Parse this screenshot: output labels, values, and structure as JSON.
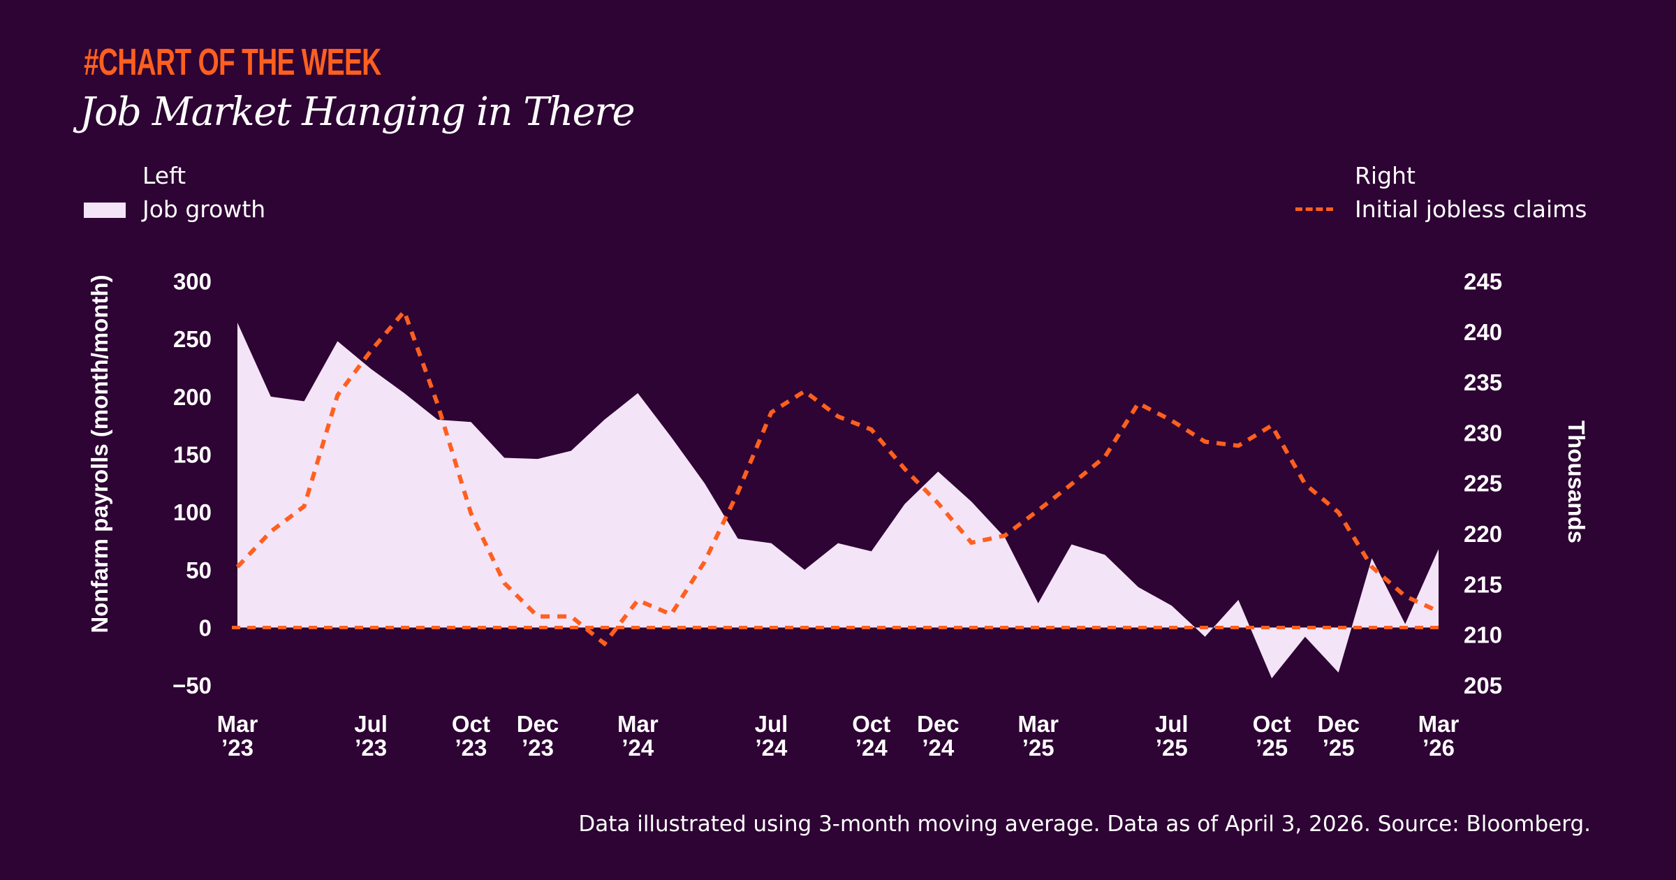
{
  "header": {
    "tag": "#CHART OF THE WEEK",
    "title": "Job Market Hanging in There"
  },
  "legend": {
    "left_heading": "Left",
    "left_item": "Job growth",
    "right_heading": "Right",
    "right_item": "Initial jobless claims"
  },
  "footnote": "Data illustrated using 3-month moving average. Data as of April 3, 2026. Source: Bloomberg.",
  "colors": {
    "background": "#2d0433",
    "area": "#f4e4f7",
    "line": "#ff5f1f",
    "accent": "#ff5f1f"
  },
  "chart_data": {
    "type": "area+line",
    "title": "Job Market Hanging in There",
    "ylabel": "Nonfarm payrolls (month/month)",
    "y2label": "Thousands",
    "ylim": [
      -50,
      300
    ],
    "y2lim": [
      205,
      245
    ],
    "yticks": [
      "300",
      "250",
      "200",
      "150",
      "100",
      "50",
      "0",
      "−50"
    ],
    "y2ticks": [
      "245",
      "240",
      "235",
      "230",
      "225",
      "220",
      "215",
      "210",
      "205"
    ],
    "xticks": [
      {
        "month": "Mar",
        "year": "’23",
        "index": 0
      },
      {
        "month": "Jul",
        "year": "’23",
        "index": 4
      },
      {
        "month": "Oct",
        "year": "’23",
        "index": 7
      },
      {
        "month": "Dec",
        "year": "’23",
        "index": 9
      },
      {
        "month": "Mar",
        "year": "’24",
        "index": 12
      },
      {
        "month": "Jul",
        "year": "’24",
        "index": 16
      },
      {
        "month": "Oct",
        "year": "’24",
        "index": 19
      },
      {
        "month": "Dec",
        "year": "’24",
        "index": 21
      },
      {
        "month": "Mar",
        "year": "’25",
        "index": 24
      },
      {
        "month": "Jul",
        "year": "’25",
        "index": 28
      },
      {
        "month": "Oct",
        "year": "’25",
        "index": 31
      },
      {
        "month": "Dec",
        "year": "’25",
        "index": 33
      },
      {
        "month": "Mar",
        "year": "’26",
        "index": 36
      }
    ],
    "x": [
      "2023-03",
      "2023-04",
      "2023-05",
      "2023-06",
      "2023-07",
      "2023-08",
      "2023-09",
      "2023-10",
      "2023-11",
      "2023-12",
      "2024-01",
      "2024-02",
      "2024-03",
      "2024-04",
      "2024-05",
      "2024-06",
      "2024-07",
      "2024-08",
      "2024-09",
      "2024-10",
      "2024-11",
      "2024-12",
      "2025-01",
      "2025-02",
      "2025-03",
      "2025-04",
      "2025-05",
      "2025-06",
      "2025-07",
      "2025-08",
      "2025-09",
      "2025-10",
      "2025-11",
      "2025-12",
      "2026-01",
      "2026-02",
      "2026-03"
    ],
    "series": [
      {
        "name": "Job growth",
        "axis": "left",
        "type": "area",
        "values": [
          264,
          200,
          196,
          248,
          224,
          203,
          180,
          178,
          147,
          146,
          153,
          180,
          203,
          165,
          125,
          77,
          73,
          50,
          73,
          66,
          107,
          135,
          109,
          78,
          21,
          72,
          63,
          35,
          19,
          -8,
          24,
          -44,
          -8,
          -39,
          60,
          3,
          68
        ]
      },
      {
        "name": "Initial jobless claims",
        "axis": "right",
        "type": "dashed-line",
        "values": [
          216.7,
          220.2,
          222.7,
          233.7,
          238.1,
          242.0,
          232.8,
          222.0,
          215.1,
          211.8,
          211.8,
          209.1,
          213.4,
          212.0,
          217.2,
          224.1,
          232.0,
          234.1,
          231.6,
          230.3,
          226.4,
          223.0,
          219.1,
          219.8,
          222.3,
          224.9,
          227.6,
          232.9,
          231.2,
          229.1,
          228.7,
          230.7,
          224.9,
          222.1,
          216.7,
          213.8,
          212.3
        ]
      }
    ],
    "reference_line": {
      "axis": "left",
      "value": 0
    },
    "grid": false,
    "legend_position": "top"
  }
}
